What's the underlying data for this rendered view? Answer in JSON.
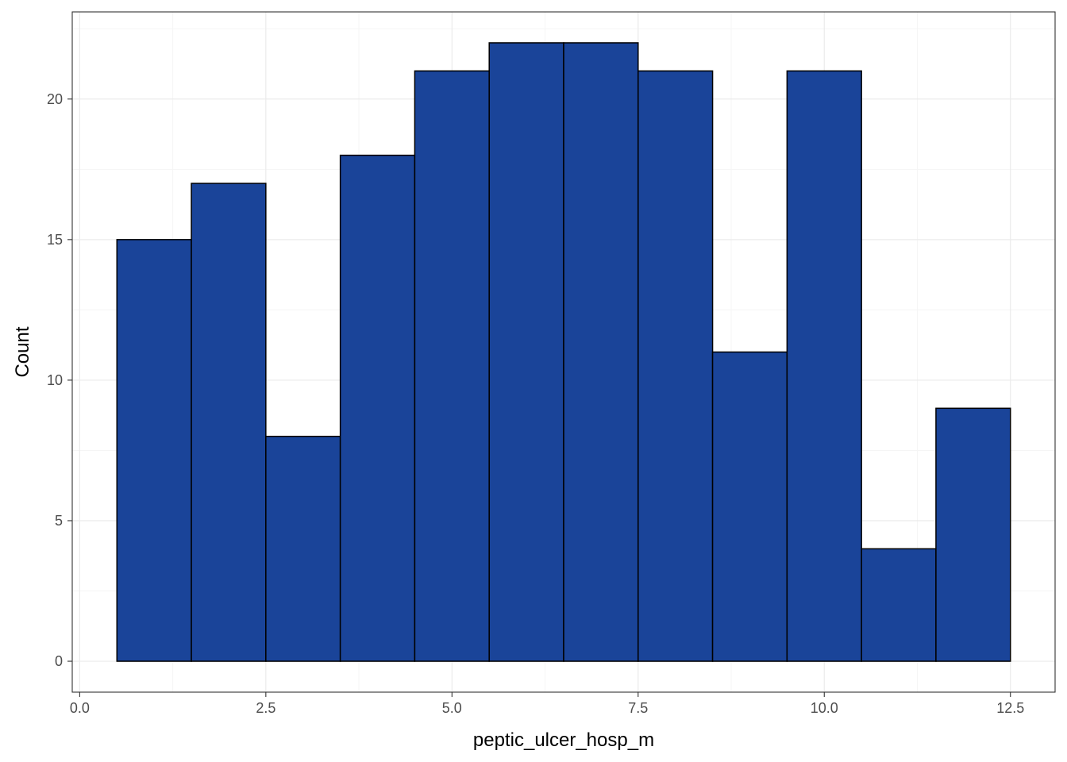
{
  "chart_data": {
    "type": "bar",
    "subtype": "histogram",
    "title": "",
    "xlabel": "peptic_ulcer_hosp_m",
    "ylabel": "Count",
    "xlim": [
      -0.1,
      13.1
    ],
    "ylim": [
      -1.1,
      23.1
    ],
    "grid": true,
    "legend": "none",
    "bin_width": 1,
    "bins": [
      {
        "x0": 0.5,
        "x1": 1.5,
        "count": 15
      },
      {
        "x0": 1.5,
        "x1": 2.5,
        "count": 17
      },
      {
        "x0": 2.5,
        "x1": 3.5,
        "count": 8
      },
      {
        "x0": 3.5,
        "x1": 4.5,
        "count": 18
      },
      {
        "x0": 4.5,
        "x1": 5.5,
        "count": 21
      },
      {
        "x0": 5.5,
        "x1": 6.5,
        "count": 22
      },
      {
        "x0": 6.5,
        "x1": 7.5,
        "count": 22
      },
      {
        "x0": 7.5,
        "x1": 8.5,
        "count": 21
      },
      {
        "x0": 8.5,
        "x1": 9.5,
        "count": 11
      },
      {
        "x0": 9.5,
        "x1": 10.5,
        "count": 21
      },
      {
        "x0": 10.5,
        "x1": 11.5,
        "count": 4
      },
      {
        "x0": 11.5,
        "x1": 12.5,
        "count": 9
      }
    ],
    "x_ticks": [
      {
        "value": 0,
        "label": "0.0"
      },
      {
        "value": 2.5,
        "label": "2.5"
      },
      {
        "value": 5,
        "label": "5.0"
      },
      {
        "value": 7.5,
        "label": "7.5"
      },
      {
        "value": 10,
        "label": "10.0"
      },
      {
        "value": 12.5,
        "label": "12.5"
      }
    ],
    "y_ticks": [
      {
        "value": 0,
        "label": "0"
      },
      {
        "value": 5,
        "label": "5"
      },
      {
        "value": 10,
        "label": "10"
      },
      {
        "value": 15,
        "label": "15"
      },
      {
        "value": 20,
        "label": "20"
      }
    ],
    "x_minor": [
      1.25,
      3.75,
      6.25,
      8.75,
      11.25
    ],
    "y_minor": [
      2.5,
      7.5,
      12.5,
      17.5,
      22.5
    ],
    "colors": {
      "bar_fill": "#1a4499",
      "bar_stroke": "#000000",
      "grid_major": "#ebebeb",
      "grid_minor": "#f5f5f5",
      "panel_border": "#333333",
      "tick_text": "#4d4d4d"
    }
  }
}
